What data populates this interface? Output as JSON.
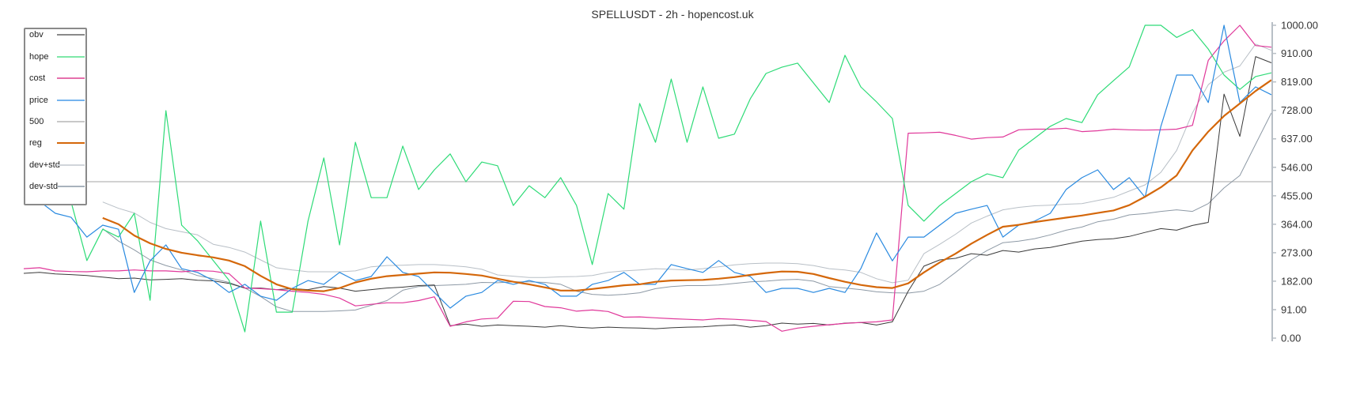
{
  "title": "SPELLUSDT - 2h - hopencost.uk",
  "colors": {
    "obv": "#3a3a3a",
    "hope": "#2edb77",
    "cost": "#e0389a",
    "price": "#2a8ae0",
    "500": "#c4c4c4",
    "reg": "#d4670a",
    "dev+std": "#b8bfc6",
    "dev-std": "#8d99a5"
  },
  "chart_data": {
    "type": "line",
    "title": "SPELLUSDT - 2h - hopencost.uk",
    "xlabel": "",
    "ylabel": "",
    "ylim": [
      0,
      1000
    ],
    "y_ticks": [
      "1000.00",
      "910.00",
      "819.00",
      "728.00",
      "637.00",
      "546.00",
      "455.00",
      "364.00",
      "273.00",
      "182.00",
      "91.00",
      "0.00"
    ],
    "y_tick_values": [
      1000,
      910,
      819,
      728,
      637,
      546,
      455,
      364,
      273,
      182,
      91,
      0
    ],
    "grid": false,
    "legend_position": "upper left",
    "x": [
      0,
      1,
      2,
      3,
      4,
      5,
      6,
      7,
      8,
      9,
      10,
      11,
      12,
      13,
      14,
      15,
      16,
      17,
      18,
      19,
      20,
      21,
      22,
      23,
      24,
      25,
      26,
      27,
      28,
      29,
      30,
      31,
      32,
      33,
      34,
      35,
      36,
      37,
      38,
      39,
      40,
      41,
      42,
      43,
      44,
      45,
      46,
      47,
      48,
      49,
      50,
      51,
      52,
      53,
      54,
      55,
      56,
      57,
      58,
      59,
      60,
      61,
      62,
      63,
      64,
      65,
      66,
      67,
      68,
      69,
      70,
      71,
      72,
      73,
      74,
      75,
      76,
      77,
      78,
      79
    ],
    "series": [
      {
        "name": "obv",
        "values": [
          207,
          210,
          205,
          203,
          200,
          195,
          190,
          192,
          186,
          188,
          190,
          185,
          183,
          175,
          160,
          160,
          155,
          158,
          155,
          165,
          160,
          150,
          155,
          160,
          163,
          168,
          170,
          40,
          45,
          38,
          42,
          40,
          38,
          35,
          40,
          35,
          32,
          35,
          33,
          32,
          30,
          33,
          35,
          36,
          40,
          42,
          35,
          40,
          48,
          45,
          47,
          42,
          48,
          50,
          42,
          52,
          150,
          230,
          250,
          255,
          270,
          265,
          280,
          275,
          285,
          290,
          300,
          310,
          315,
          318,
          325,
          338,
          350,
          345,
          360,
          370,
          780,
          645,
          900,
          880
        ]
      },
      {
        "name": "hope",
        "values": [
          null,
          null,
          null,
          435,
          248,
          348,
          323,
          399,
          121,
          727,
          361,
          311,
          248,
          185,
          20,
          374,
          83,
          83,
          374,
          576,
          298,
          626,
          449,
          449,
          614,
          475,
          538,
          589,
          500,
          563,
          551,
          424,
          487,
          449,
          513,
          424,
          235,
          462,
          412,
          750,
          626,
          828,
          626,
          803,
          639,
          652,
          765,
          846,
          866,
          879,
          816,
          753,
          904,
          803,
          755,
          702,
          424,
          374,
          424,
          462,
          500,
          525,
          513,
          601,
          639,
          677,
          702,
          689,
          778,
          823,
          867,
          1023,
          1073,
          961,
          986,
          924,
          841,
          795,
          836,
          848
        ]
      },
      {
        "name": "cost",
        "values": [
          222,
          225,
          215,
          213,
          212,
          215,
          215,
          218,
          215,
          215,
          212,
          216,
          214,
          206,
          160,
          158,
          155,
          150,
          146,
          140,
          128,
          103,
          108,
          113,
          113,
          120,
          132,
          38,
          52,
          61,
          64,
          118,
          117,
          101,
          97,
          86,
          90,
          85,
          67,
          68,
          65,
          62,
          60,
          58,
          62,
          60,
          57,
          53,
          22,
          32,
          38,
          43,
          47,
          50,
          52,
          58,
          655,
          656,
          658,
          648,
          636,
          641,
          643,
          666,
          668,
          668,
          671,
          660,
          663,
          668,
          666,
          665,
          666,
          668,
          680,
          888,
          950,
          1000,
          935,
          930
        ]
      },
      {
        "name": "price",
        "values": [
          449,
          437,
          399,
          386,
          323,
          361,
          348,
          146,
          247,
          298,
          222,
          210,
          184,
          146,
          172,
          134,
          121,
          159,
          184,
          172,
          210,
          184,
          197,
          260,
          210,
          197,
          146,
          96,
          134,
          146,
          184,
          172,
          184,
          172,
          134,
          134,
          172,
          184,
          210,
          172,
          172,
          235,
          222,
          210,
          248,
          210,
          197,
          146,
          159,
          159,
          146,
          159,
          146,
          222,
          336,
          247,
          323,
          323,
          361,
          399,
          412,
          424,
          323,
          361,
          374,
          399,
          475,
          513,
          538,
          475,
          513,
          450,
          677,
          841,
          841,
          753,
          1000,
          753,
          803,
          778
        ]
      },
      {
        "name": "500",
        "values": [
          500,
          500,
          500,
          500,
          500,
          500,
          500,
          500,
          500,
          500,
          500,
          500,
          500,
          500,
          500,
          500,
          500,
          500,
          500,
          500,
          500,
          500,
          500,
          500,
          500,
          500,
          500,
          500,
          500,
          500,
          500,
          500,
          500,
          500,
          500,
          500,
          500,
          500,
          500,
          500,
          500,
          500,
          500,
          500,
          500,
          500,
          500,
          500,
          500,
          500,
          500,
          500,
          500,
          500,
          500,
          500,
          500,
          500,
          500,
          500,
          500,
          500,
          500,
          500,
          500,
          500,
          500,
          500,
          500,
          500,
          500,
          500,
          500,
          500,
          500,
          500,
          500,
          500,
          500,
          500
        ]
      },
      {
        "name": "reg",
        "values": [
          null,
          null,
          null,
          null,
          null,
          384,
          364,
          328,
          303,
          285,
          273,
          265,
          258,
          248,
          230,
          199,
          172,
          156,
          152,
          150,
          160,
          178,
          190,
          198,
          202,
          206,
          210,
          209,
          205,
          200,
          190,
          180,
          172,
          162,
          152,
          152,
          157,
          163,
          169,
          172,
          180,
          184,
          185,
          186,
          190,
          195,
          202,
          208,
          213,
          212,
          205,
          192,
          180,
          170,
          163,
          160,
          175,
          210,
          242,
          270,
          302,
          330,
          356,
          362,
          371,
          378,
          385,
          392,
          400,
          408,
          425,
          452,
          482,
          520,
          600,
          660,
          710,
          750,
          790,
          825
        ]
      },
      {
        "name": "dev+std",
        "values": [
          null,
          null,
          null,
          null,
          null,
          435,
          415,
          400,
          370,
          350,
          340,
          330,
          300,
          290,
          275,
          250,
          225,
          218,
          212,
          212,
          212,
          215,
          228,
          232,
          233,
          235,
          235,
          232,
          228,
          220,
          202,
          198,
          194,
          194,
          196,
          197,
          200,
          210,
          215,
          218,
          222,
          220,
          218,
          222,
          228,
          234,
          238,
          240,
          240,
          238,
          232,
          222,
          218,
          210,
          190,
          177,
          185,
          270,
          300,
          332,
          368,
          390,
          410,
          418,
          423,
          425,
          428,
          430,
          440,
          450,
          470,
          490,
          530,
          600,
          720,
          810,
          850,
          870,
          940,
          920
        ]
      },
      {
        "name": "dev-std",
        "values": [
          null,
          null,
          null,
          null,
          null,
          350,
          310,
          282,
          250,
          232,
          218,
          200,
          190,
          178,
          160,
          133,
          100,
          85,
          85,
          85,
          87,
          90,
          105,
          120,
          153,
          165,
          168,
          170,
          172,
          178,
          177,
          180,
          180,
          178,
          172,
          150,
          140,
          137,
          140,
          145,
          158,
          165,
          168,
          168,
          170,
          175,
          180,
          182,
          186,
          188,
          182,
          165,
          160,
          155,
          148,
          145,
          144,
          150,
          172,
          210,
          250,
          280,
          305,
          310,
          318,
          330,
          345,
          355,
          372,
          380,
          394,
          398,
          405,
          410,
          405,
          430,
          480,
          520,
          620,
          720
        ]
      }
    ]
  },
  "legend": {
    "items": [
      {
        "label": "obv",
        "key": "obv"
      },
      {
        "label": "hope",
        "key": "hope"
      },
      {
        "label": "cost",
        "key": "cost"
      },
      {
        "label": "price",
        "key": "price"
      },
      {
        "label": "500",
        "key": "500"
      },
      {
        "label": "reg",
        "key": "reg"
      },
      {
        "label": "dev+std",
        "key": "dev+std"
      },
      {
        "label": "dev-std",
        "key": "dev-std"
      }
    ]
  }
}
